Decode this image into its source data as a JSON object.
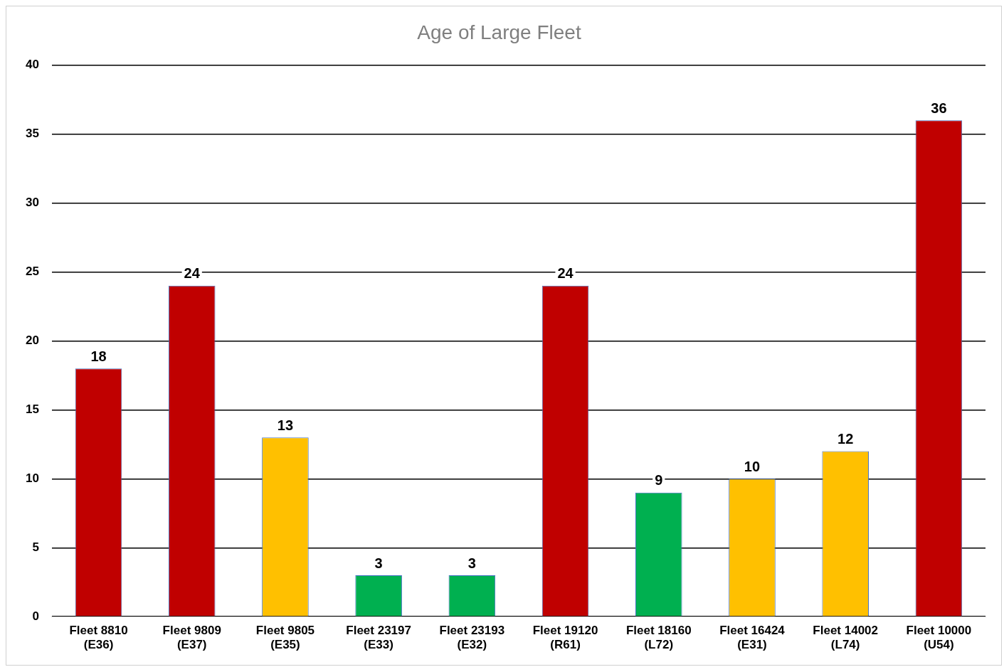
{
  "chart_data": {
    "type": "bar",
    "title": "Age of Large Fleet",
    "categories": [
      "Fleet 8810\n(E36)",
      "Fleet 9809\n(E37)",
      "Fleet 9805\n(E35)",
      "Fleet 23197\n(E33)",
      "Fleet 23193\n(E32)",
      "Fleet 19120\n(R61)",
      "Fleet 18160\n(L72)",
      "Fleet 16424\n(E31)",
      "Fleet 14002\n(L74)",
      "Fleet 10000\n(U54)"
    ],
    "values": [
      18,
      24,
      13,
      3,
      3,
      24,
      9,
      10,
      12,
      36
    ],
    "colors": [
      "#c00000",
      "#c00000",
      "#ffc000",
      "#00b050",
      "#00b050",
      "#c00000",
      "#00b050",
      "#ffc000",
      "#ffc000",
      "#c00000"
    ],
    "ylim": [
      0,
      40
    ],
    "yticks": [
      0,
      5,
      10,
      15,
      20,
      25,
      30,
      35,
      40
    ],
    "grid": "y",
    "data_labels": true,
    "legend": false
  }
}
